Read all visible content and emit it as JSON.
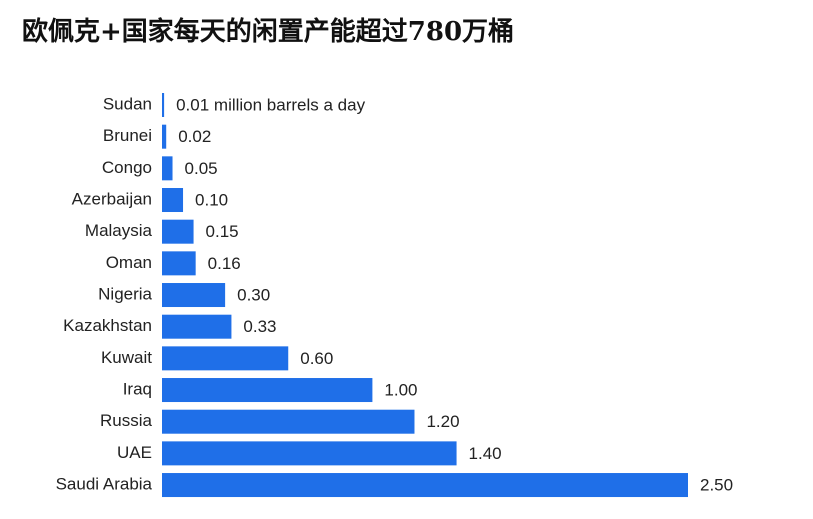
{
  "chart_data": {
    "type": "bar",
    "orientation": "horizontal",
    "title": "欧佩克+国家每天的闲置产能超过780万桶",
    "categories": [
      "Sudan",
      "Brunei",
      "Congo",
      "Azerbaijan",
      "Malaysia",
      "Oman",
      "Nigeria",
      "Kazakhstan",
      "Kuwait",
      "Iraq",
      "Russia",
      "UAE",
      "Saudi Arabia"
    ],
    "values": [
      0.01,
      0.02,
      0.05,
      0.1,
      0.15,
      0.16,
      0.3,
      0.33,
      0.6,
      1.0,
      1.2,
      1.4,
      2.5
    ],
    "value_labels": [
      "0.01 million barrels a day",
      "0.02",
      "0.05",
      "0.10",
      "0.15",
      "0.16",
      "0.30",
      "0.33",
      "0.60",
      "1.00",
      "1.20",
      "1.40",
      "2.50"
    ],
    "color": "#1f6fe8"
  }
}
